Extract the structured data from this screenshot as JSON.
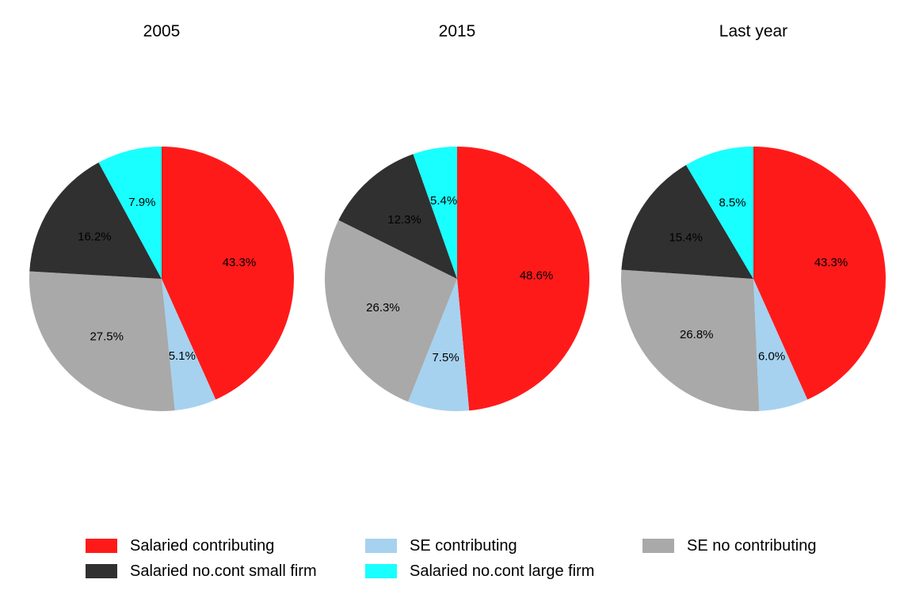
{
  "chart_data": {
    "type": "pie",
    "categories": [
      "Salaried contributing",
      "SE contributing",
      "SE no contributing",
      "Salaried no.cont small firm",
      "Salaried no.cont large firm"
    ],
    "colors": {
      "Salaried contributing": "#ff1a1a",
      "SE contributing": "#a6d2ef",
      "SE no contributing": "#a9a9a9",
      "Salaried no.cont small firm": "#303030",
      "Salaried no.cont large firm": "#19ffff"
    },
    "direction": "clockwise from top",
    "pies": [
      {
        "title": "2005",
        "values": [
          43.3,
          5.1,
          27.5,
          16.2,
          7.9
        ],
        "labels": [
          "43.3%",
          "5.1%",
          "27.5%",
          "16.2%",
          "7.9%"
        ]
      },
      {
        "title": "2015",
        "values": [
          48.6,
          7.5,
          26.3,
          12.3,
          5.4
        ],
        "labels": [
          "48.6%",
          "7.5%",
          "26.3%",
          "12.3%",
          "5.4%"
        ]
      },
      {
        "title": "Last year",
        "values": [
          43.3,
          6.0,
          26.8,
          15.4,
          8.5
        ],
        "labels": [
          "43.3%",
          "6.0%",
          "26.8%",
          "15.4%",
          "8.5%"
        ]
      }
    ],
    "legend": {
      "position": "bottom",
      "items": [
        "Salaried contributing",
        "SE contributing",
        "SE no contributing",
        "Salaried no.cont small firm",
        "Salaried no.cont large firm"
      ]
    }
  }
}
